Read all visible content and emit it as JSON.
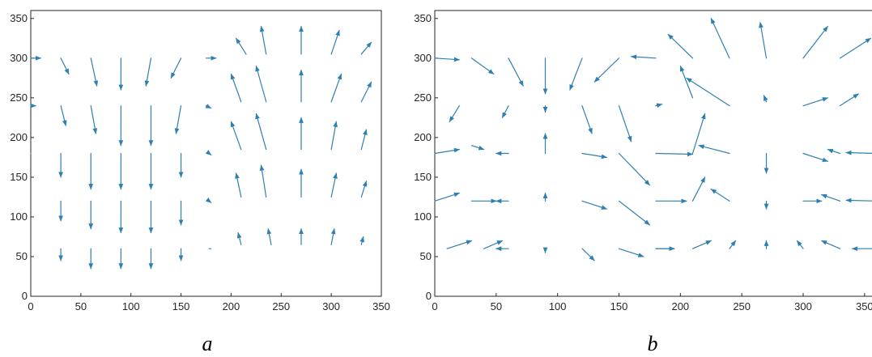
{
  "colors": {
    "arrow": "#2f7fb0",
    "axis": "#262626",
    "background": "#ffffff"
  },
  "chart_data": [
    {
      "type": "quiver",
      "panel_label": "a",
      "xlim": [
        0,
        350
      ],
      "ylim": [
        0,
        360
      ],
      "xticks": [
        0,
        50,
        100,
        150,
        200,
        250,
        300,
        350
      ],
      "yticks": [
        0,
        50,
        100,
        150,
        200,
        250,
        300,
        350
      ],
      "grid": false,
      "arrows": [
        [
          0,
          300,
          10,
          0
        ],
        [
          30,
          300,
          8,
          -20
        ],
        [
          60,
          300,
          6,
          -35
        ],
        [
          90,
          300,
          0,
          -40
        ],
        [
          120,
          300,
          -5,
          -35
        ],
        [
          150,
          300,
          -10,
          -25
        ],
        [
          175,
          300,
          10,
          0
        ],
        [
          0,
          240,
          5,
          0
        ],
        [
          30,
          240,
          5,
          -25
        ],
        [
          60,
          240,
          5,
          -35
        ],
        [
          90,
          240,
          0,
          -50
        ],
        [
          120,
          240,
          0,
          -50
        ],
        [
          150,
          240,
          -5,
          -35
        ],
        [
          175,
          240,
          5,
          -3
        ],
        [
          0,
          180,
          0,
          0
        ],
        [
          30,
          180,
          0,
          -30
        ],
        [
          60,
          180,
          0,
          -45
        ],
        [
          90,
          180,
          0,
          -45
        ],
        [
          120,
          180,
          0,
          -45
        ],
        [
          150,
          180,
          0,
          -30
        ],
        [
          178,
          180,
          2,
          -2
        ],
        [
          30,
          120,
          0,
          -25
        ],
        [
          60,
          120,
          0,
          -35
        ],
        [
          90,
          120,
          0,
          -40
        ],
        [
          120,
          120,
          0,
          -40
        ],
        [
          150,
          120,
          0,
          -30
        ],
        [
          178,
          120,
          2,
          -2
        ],
        [
          30,
          60,
          0,
          -15
        ],
        [
          60,
          60,
          0,
          -25
        ],
        [
          90,
          60,
          0,
          -25
        ],
        [
          120,
          60,
          0,
          -25
        ],
        [
          150,
          60,
          0,
          -15
        ],
        [
          178,
          60,
          2,
          0
        ],
        [
          215,
          305,
          -10,
          20
        ],
        [
          235,
          305,
          -5,
          35
        ],
        [
          270,
          305,
          0,
          35
        ],
        [
          300,
          305,
          8,
          30
        ],
        [
          330,
          305,
          10,
          15
        ],
        [
          210,
          245,
          -10,
          35
        ],
        [
          235,
          245,
          -10,
          45
        ],
        [
          270,
          245,
          0,
          40
        ],
        [
          300,
          245,
          10,
          35
        ],
        [
          330,
          245,
          10,
          25
        ],
        [
          210,
          185,
          -10,
          35
        ],
        [
          235,
          185,
          -10,
          45
        ],
        [
          270,
          185,
          0,
          40
        ],
        [
          300,
          185,
          5,
          35
        ],
        [
          330,
          185,
          5,
          25
        ],
        [
          210,
          125,
          -5,
          30
        ],
        [
          235,
          125,
          -5,
          40
        ],
        [
          270,
          125,
          0,
          35
        ],
        [
          300,
          125,
          5,
          30
        ],
        [
          330,
          125,
          5,
          20
        ],
        [
          210,
          65,
          -3,
          15
        ],
        [
          240,
          65,
          -3,
          20
        ],
        [
          270,
          65,
          0,
          20
        ],
        [
          300,
          65,
          3,
          20
        ],
        [
          330,
          65,
          2,
          10
        ]
      ]
    },
    {
      "type": "quiver",
      "panel_label": "b",
      "xlim": [
        0,
        360
      ],
      "ylim": [
        0,
        360
      ],
      "xticks": [
        0,
        50,
        100,
        150,
        200,
        250,
        300,
        350
      ],
      "yticks": [
        0,
        50,
        100,
        150,
        200,
        250,
        300,
        350
      ],
      "grid": false,
      "arrows": [
        [
          0,
          300,
          20,
          -2
        ],
        [
          30,
          300,
          18,
          -20
        ],
        [
          60,
          300,
          12,
          -35
        ],
        [
          90,
          300,
          0,
          -45
        ],
        [
          120,
          300,
          -10,
          -40
        ],
        [
          150,
          300,
          -20,
          -30
        ],
        [
          180,
          300,
          -20,
          2
        ],
        [
          20,
          240,
          -8,
          -20
        ],
        [
          60,
          240,
          -5,
          -15
        ],
        [
          90,
          240,
          0,
          -8
        ],
        [
          120,
          240,
          8,
          -35
        ],
        [
          150,
          240,
          10,
          -45
        ],
        [
          180,
          240,
          5,
          2
        ],
        [
          0,
          180,
          20,
          5
        ],
        [
          30,
          190,
          10,
          -5
        ],
        [
          60,
          180,
          -10,
          0
        ],
        [
          90,
          180,
          0,
          25
        ],
        [
          120,
          180,
          20,
          -5
        ],
        [
          150,
          180,
          25,
          -40
        ],
        [
          0,
          120,
          20,
          10
        ],
        [
          30,
          120,
          20,
          0
        ],
        [
          60,
          120,
          -10,
          0
        ],
        [
          90,
          120,
          0,
          10
        ],
        [
          120,
          120,
          20,
          -10
        ],
        [
          150,
          120,
          25,
          -30
        ],
        [
          10,
          60,
          20,
          10
        ],
        [
          40,
          60,
          15,
          10
        ],
        [
          60,
          60,
          -10,
          0
        ],
        [
          90,
          60,
          0,
          -5
        ],
        [
          120,
          60,
          10,
          -15
        ],
        [
          150,
          60,
          20,
          -10
        ],
        [
          180,
          60,
          15,
          0
        ],
        [
          210,
          300,
          -20,
          30
        ],
        [
          240,
          300,
          -15,
          50
        ],
        [
          270,
          300,
          -5,
          45
        ],
        [
          300,
          300,
          20,
          40
        ],
        [
          330,
          300,
          25,
          25
        ],
        [
          210,
          250,
          -10,
          40
        ],
        [
          240,
          240,
          -35,
          35
        ],
        [
          270,
          245,
          -2,
          8
        ],
        [
          300,
          240,
          20,
          10
        ],
        [
          330,
          240,
          15,
          15
        ],
        [
          180,
          180,
          30,
          -1
        ],
        [
          210,
          180,
          10,
          50
        ],
        [
          240,
          180,
          -25,
          10
        ],
        [
          270,
          180,
          0,
          -25
        ],
        [
          300,
          180,
          20,
          -10
        ],
        [
          330,
          180,
          -10,
          5
        ],
        [
          360,
          180,
          -25,
          1
        ],
        [
          180,
          120,
          25,
          0
        ],
        [
          210,
          120,
          10,
          30
        ],
        [
          240,
          120,
          -15,
          15
        ],
        [
          270,
          120,
          0,
          -10
        ],
        [
          300,
          120,
          15,
          0
        ],
        [
          330,
          120,
          -15,
          8
        ],
        [
          360,
          120,
          -25,
          1
        ],
        [
          180,
          60,
          15,
          0
        ],
        [
          210,
          60,
          15,
          10
        ],
        [
          240,
          60,
          5,
          10
        ],
        [
          270,
          60,
          0,
          10
        ],
        [
          300,
          60,
          -5,
          10
        ],
        [
          330,
          60,
          -15,
          10
        ],
        [
          360,
          60,
          -20,
          0
        ]
      ]
    }
  ]
}
